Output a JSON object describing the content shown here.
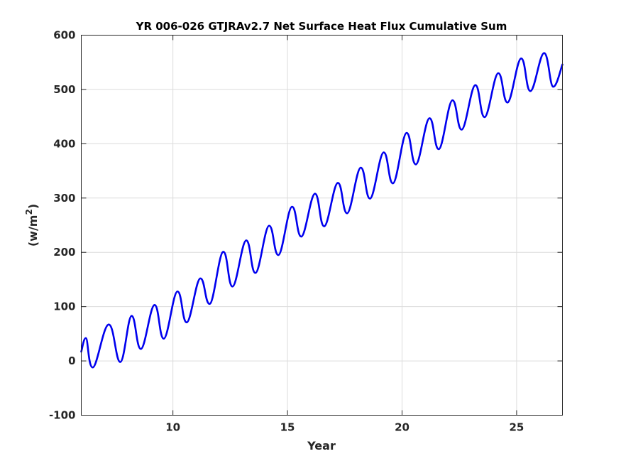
{
  "chart_data": {
    "type": "line",
    "title": "YR 006-026 GTJRAv2.7 Net Surface Heat Flux  Cumulative Sum",
    "xlabel": "Year",
    "ylabel": "(w/m^2)",
    "ylabel_main": "(w/m",
    "ylabel_sup": "2",
    "ylabel_close": ")",
    "xlim": [
      6.0,
      27.0
    ],
    "ylim": [
      -100,
      600
    ],
    "xticks": [
      10,
      15,
      20,
      25
    ],
    "xtick_labels": [
      "10",
      "15",
      "20",
      "25"
    ],
    "yticks": [
      -100,
      0,
      100,
      200,
      300,
      400,
      500,
      600
    ],
    "ytick_labels": [
      "-100",
      "0",
      "100",
      "200",
      "300",
      "400",
      "500",
      "600"
    ],
    "grid": true,
    "line_color": "#0000ee",
    "series": [
      {
        "x": [
          6.0,
          6.2,
          6.5,
          7.2,
          7.7,
          8.2,
          8.6,
          9.2,
          9.6,
          10.2,
          10.6,
          11.2,
          11.6,
          12.2,
          12.6,
          13.2,
          13.6,
          14.2,
          14.6,
          15.2,
          15.6,
          16.2,
          16.6,
          17.2,
          17.6,
          18.2,
          18.6,
          19.2,
          19.6,
          20.2,
          20.6,
          21.2,
          21.6,
          22.2,
          22.6,
          23.2,
          23.6,
          24.2,
          24.6,
          25.2,
          25.6,
          26.2,
          26.6,
          27.0
        ],
        "y": [
          17,
          42,
          -12,
          67,
          -2,
          83,
          22,
          103,
          41,
          128,
          71,
          152,
          105,
          201,
          137,
          222,
          162,
          249,
          195,
          284,
          229,
          308,
          248,
          328,
          272,
          356,
          299,
          384,
          327,
          420,
          362,
          447,
          390,
          480,
          426,
          508,
          449,
          530,
          476,
          557,
          497,
          567,
          505,
          546
        ]
      }
    ]
  }
}
